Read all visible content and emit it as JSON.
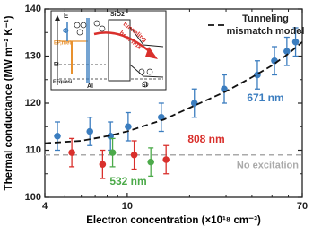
{
  "chart_data": {
    "type": "scatter",
    "xlabel": "Electron concentration (×10¹⁸ cm⁻³)",
    "ylabel": "Thermal conductance (MW m⁻² K⁻¹)",
    "xscale": "log",
    "xlim": [
      4,
      70
    ],
    "xticks": [
      4,
      10,
      70
    ],
    "xminorticks": [
      5,
      6,
      7,
      8,
      9,
      20,
      30,
      40,
      50,
      60
    ],
    "ylim": [
      100,
      140
    ],
    "yticks": [
      100,
      110,
      120,
      130,
      140
    ],
    "yminorticks": [
      105,
      115,
      125,
      135
    ],
    "series": [
      {
        "name": "671 nm",
        "color": "#3b7dbf",
        "x": [
          4.6,
          6.6,
          8.3,
          10.1,
          14.6,
          21.1,
          29.4,
          42.5,
          51.4,
          59,
          65
        ],
        "y": [
          113,
          114,
          113,
          115,
          117,
          120,
          123,
          126,
          129,
          131,
          133
        ],
        "error": [
          3,
          3,
          3,
          3,
          3,
          3,
          3,
          3,
          3,
          3,
          3
        ]
      },
      {
        "name": "808 nm",
        "color": "#d9302c",
        "x": [
          5.4,
          7.6,
          10.8,
          15.4
        ],
        "y": [
          109.5,
          107,
          109,
          108
        ],
        "error": [
          3,
          3,
          3,
          3
        ]
      },
      {
        "name": "532 nm",
        "color": "#4caa4a",
        "x": [
          8.5,
          13
        ],
        "y": [
          109.5,
          107.5
        ],
        "error": [
          3,
          3
        ]
      },
      {
        "name": "Tunneling mismatch model",
        "type": "line",
        "color": "#111111",
        "dashed": true,
        "x": [
          4,
          6,
          8,
          10,
          15,
          20,
          30,
          40,
          50,
          60,
          70
        ],
        "y": [
          111.5,
          112,
          113,
          114,
          116.5,
          119,
          122.5,
          125.5,
          128,
          130.5,
          133
        ]
      }
    ],
    "reference_lines": [
      {
        "name": "No excitation",
        "value": 109,
        "color": "#aaaaaa"
      }
    ],
    "inset": {
      "labels": [
        "E",
        "Φ",
        "EF,met",
        "Ei",
        "EFquasi",
        "SiO2",
        "tunneling",
        "heat flux",
        "Al",
        "Si"
      ]
    }
  }
}
